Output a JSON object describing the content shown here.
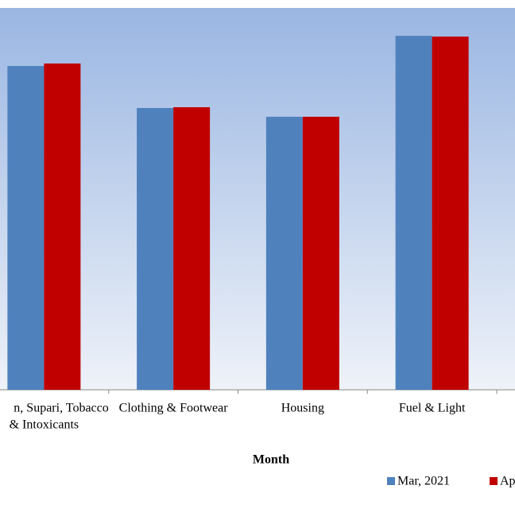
{
  "chart_data": {
    "type": "bar",
    "categories": [
      [
        "n, Supari, Tobacco",
        "& Intoxicants"
      ],
      [
        "Clothing & Footwear"
      ],
      [
        "Housing"
      ],
      [
        "Fuel & Light"
      ]
    ],
    "x_label": "Month",
    "series": [
      {
        "name": "Mar, 2021",
        "color": "#4f81bd",
        "values": [
          169.6,
          147.6,
          143.0,
          185.4
        ]
      },
      {
        "name": "Ap",
        "color": "#c00000",
        "values": [
          170.9,
          148.0,
          143.0,
          185.0
        ]
      }
    ],
    "ylim": [
      0,
      200
    ]
  }
}
